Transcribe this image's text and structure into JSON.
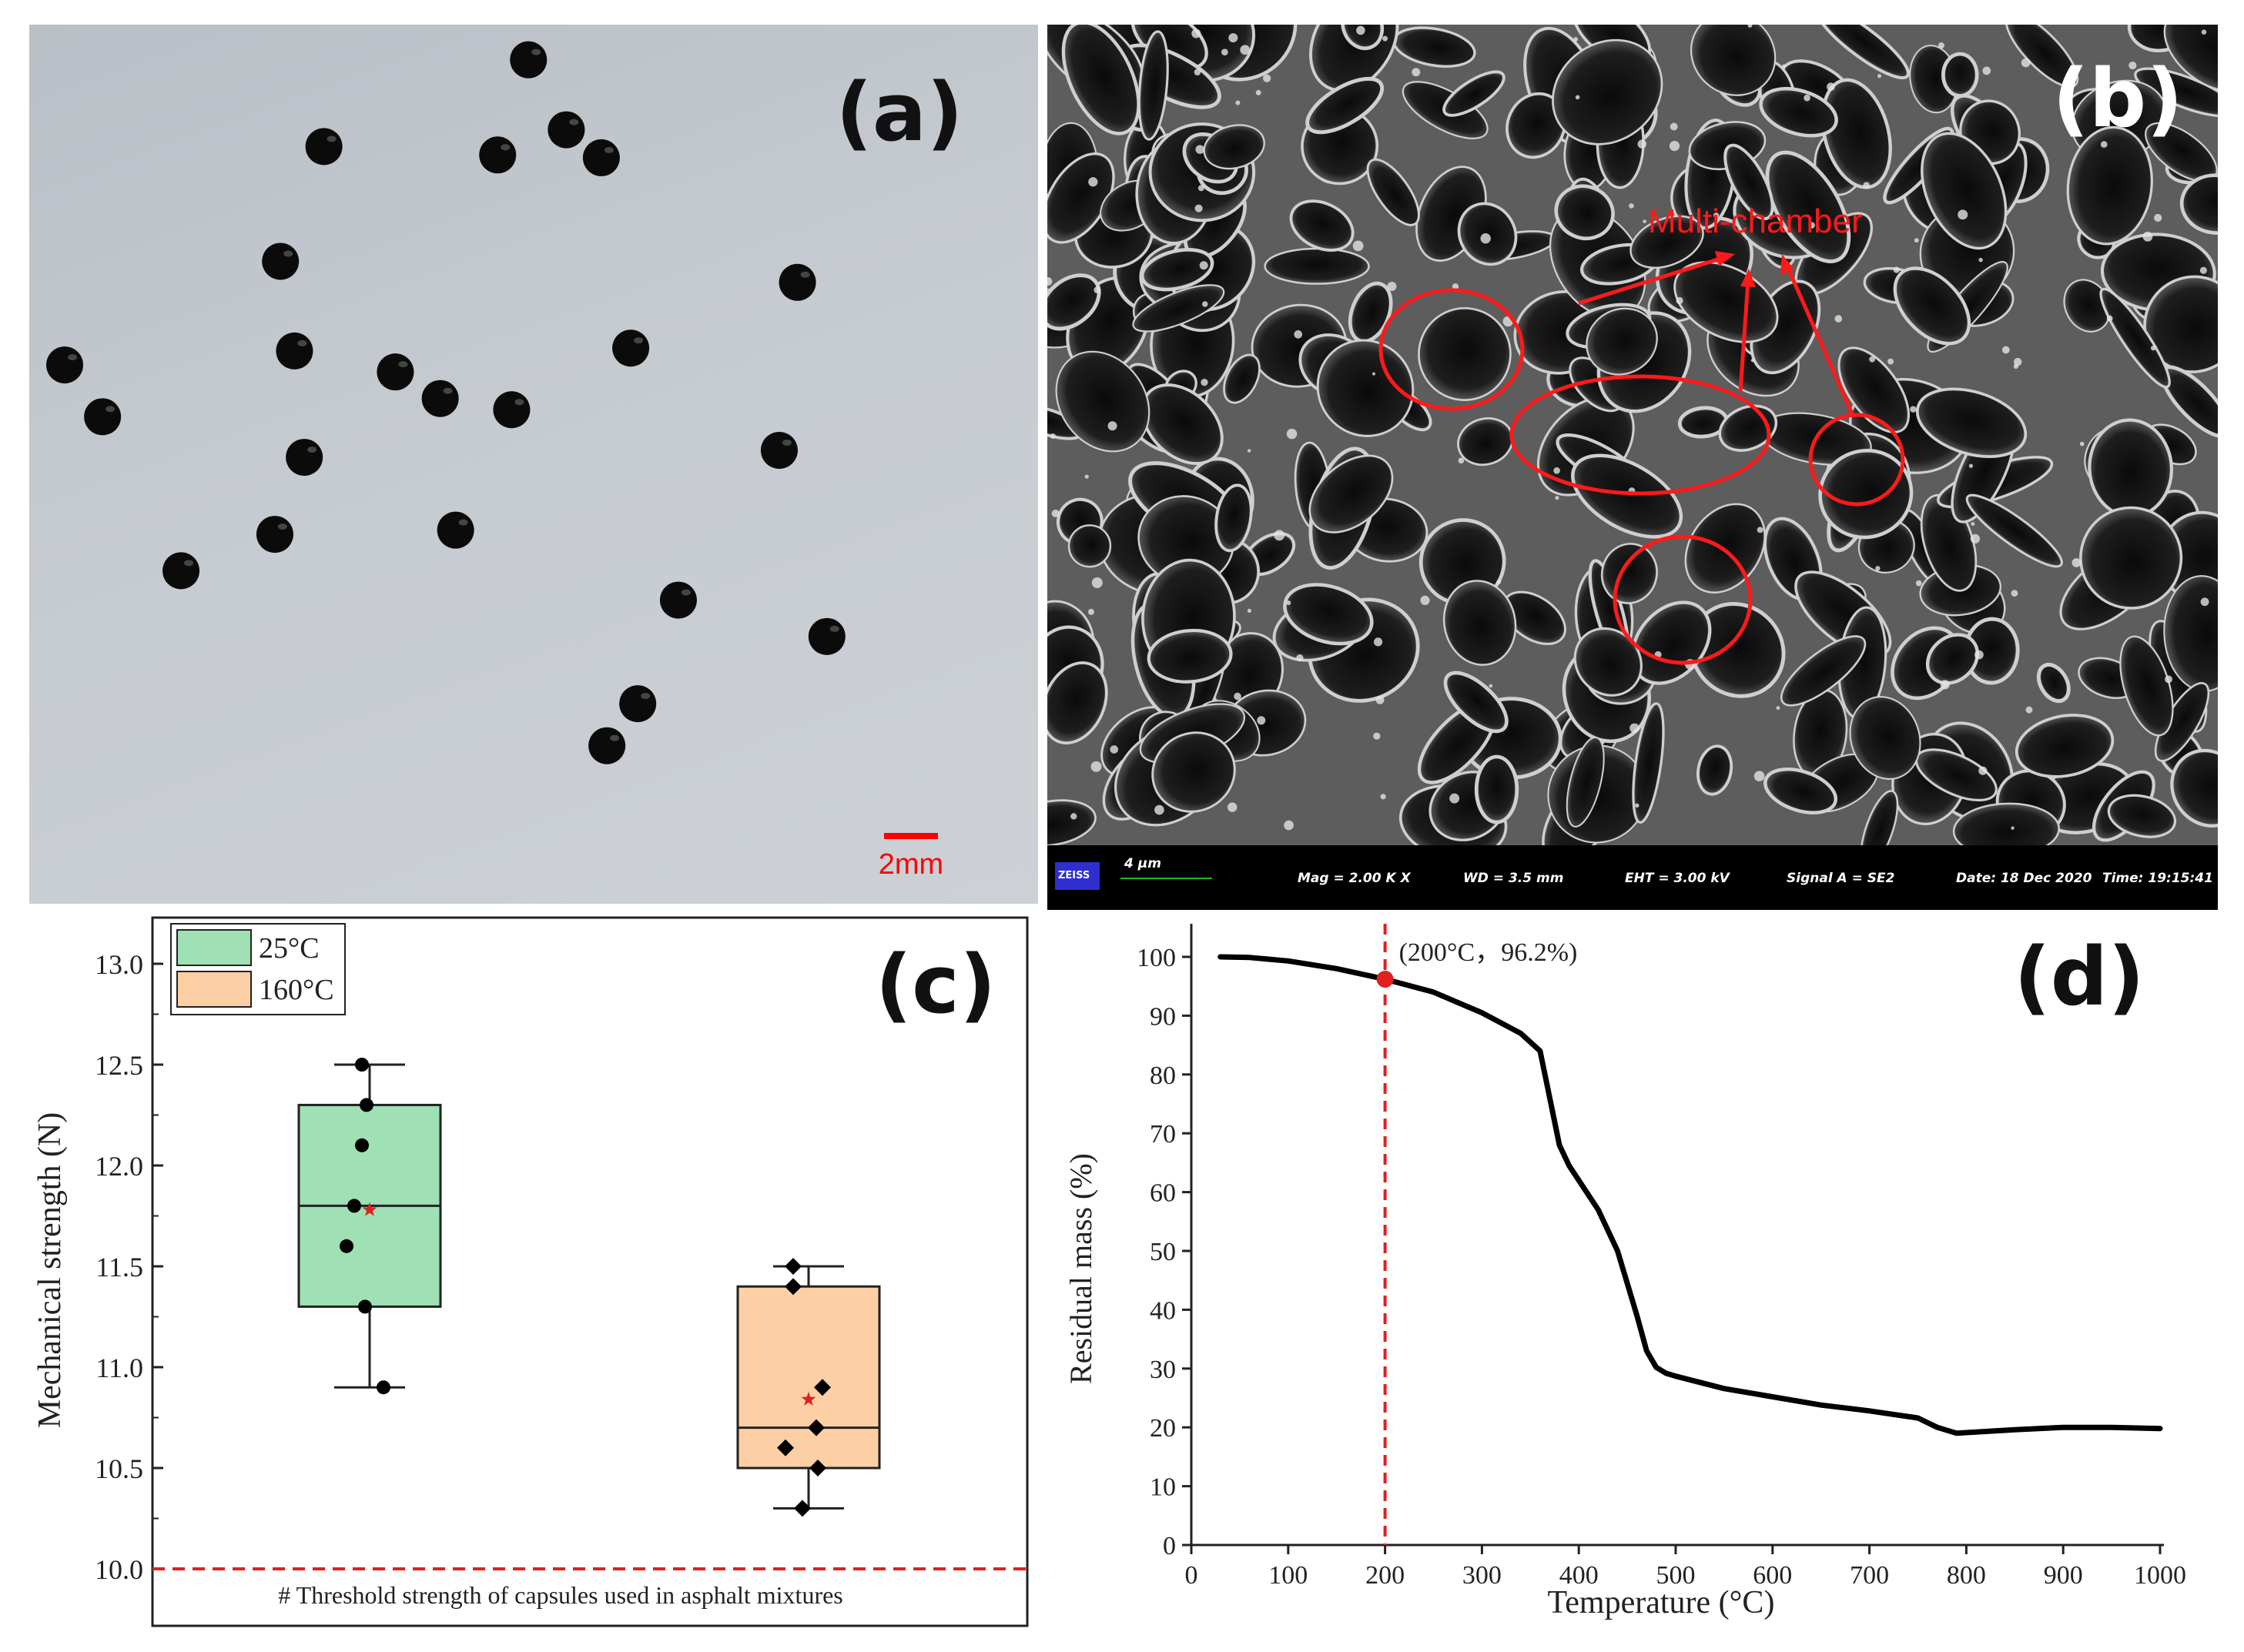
{
  "panel_a": {
    "label": "(a)",
    "scale_bar_label": "2mm",
    "scale_bar_color": "#ff0000",
    "bead_color": "#0b0b0b",
    "bead_count": 25
  },
  "panel_b": {
    "label": "(b)",
    "annotation": "Multi-chamber",
    "annotation_color": "#ff0000",
    "sem_bar": {
      "logo": "ZEISS",
      "scale": "4 μm",
      "mag": "Mag =   2.00 K X",
      "wd": "WD =  3.5 mm",
      "eht": "EHT =  3.00 kV",
      "signal": "Signal A = SE2",
      "date": "Date: 18 Dec 2020",
      "time": "Time: 19:15:41"
    }
  },
  "chart_data": [
    {
      "type": "box",
      "panel_label": "(c)",
      "ylabel": "Mechanical strength (N)",
      "ylim": [
        10.0,
        13.25
      ],
      "yticks": [
        "10.0",
        "10.5",
        "11.0",
        "11.5",
        "12.0",
        "12.5",
        "13.0"
      ],
      "legend_position": "top-left",
      "series": [
        {
          "name": "25°C",
          "color": "#9fe0b4",
          "whisker_low": 10.9,
          "q1": 11.3,
          "median": 11.8,
          "q3": 12.3,
          "whisker_high": 12.5,
          "mean": 11.78,
          "points": [
            12.5,
            12.3,
            12.1,
            11.8,
            11.6,
            11.3,
            10.9
          ],
          "marker": "circle"
        },
        {
          "name": "160°C",
          "color": "#fccfa4",
          "whisker_low": 10.3,
          "q1": 10.5,
          "median": 10.7,
          "q3": 11.4,
          "whisker_high": 11.5,
          "mean": 10.84,
          "points": [
            11.5,
            11.4,
            10.9,
            10.7,
            10.6,
            10.5,
            10.3
          ],
          "marker": "diamond"
        }
      ],
      "threshold": {
        "value": 10.0,
        "color": "#e02020",
        "label": "# Threshold strength of capsules used in asphalt mixtures"
      }
    },
    {
      "type": "line",
      "panel_label": "(d)",
      "xlabel": "Temperature (°C)",
      "ylabel": "Residual mass (%)",
      "xlim": [
        0,
        1000
      ],
      "ylim": [
        0,
        100
      ],
      "xticks": [
        "0",
        "100",
        "200",
        "300",
        "400",
        "500",
        "600",
        "700",
        "800",
        "900",
        "1000"
      ],
      "yticks": [
        "0",
        "10",
        "20",
        "30",
        "40",
        "50",
        "60",
        "70",
        "80",
        "90",
        "100"
      ],
      "series": [
        {
          "x": [
            30,
            60,
            100,
            150,
            200,
            250,
            300,
            340,
            360,
            370,
            380,
            390,
            400,
            420,
            440,
            460,
            470,
            480,
            490,
            500,
            550,
            600,
            650,
            700,
            750,
            770,
            790,
            810,
            850,
            900,
            950,
            1000
          ],
          "y": [
            100,
            99.9,
            99.3,
            98,
            96.2,
            94,
            90.5,
            87,
            84,
            76,
            68,
            64.5,
            62,
            57,
            50,
            39,
            33,
            30.2,
            29.2,
            28.7,
            26.6,
            25.2,
            23.8,
            22.8,
            21.6,
            20,
            19,
            19.2,
            19.6,
            20,
            20,
            19.8
          ]
        }
      ],
      "marker": {
        "x": 200,
        "y": 96.2,
        "label": "(200°C，96.2%)",
        "color": "#e02020"
      }
    }
  ]
}
